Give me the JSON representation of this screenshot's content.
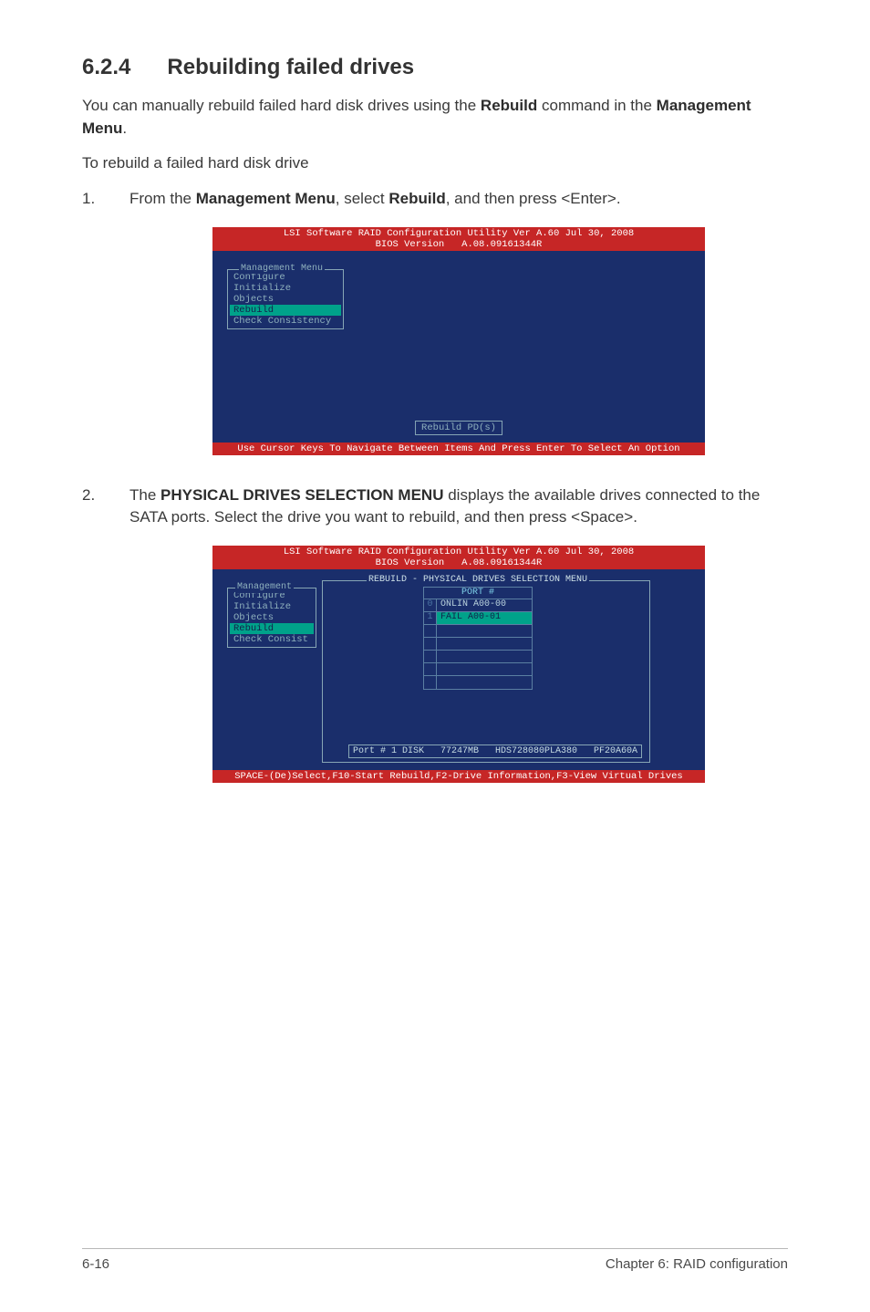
{
  "section": {
    "number": "6.2.4",
    "title": "Rebuilding failed drives"
  },
  "intro": {
    "l1a": "You can manually rebuild failed hard disk drives using the ",
    "l1b": "Rebuild",
    "l1c": " command in the ",
    "l1d": "Management Menu",
    "l1e": ".",
    "l2": "To rebuild a failed hard disk drive"
  },
  "step1": {
    "num": "1.",
    "a": "From the ",
    "b": "Management Menu",
    "c": ", select ",
    "d": "Rebuild",
    "e": ", and then press <Enter>."
  },
  "bios1": {
    "header_l1": "LSI Software RAID Configuration Utility Ver A.60 Jul 30, 2008",
    "header_l2": "BIOS Version   A.08.09161344R",
    "menu_title": "Management Menu",
    "items": [
      "Configure",
      "Initialize",
      "Objects",
      "Rebuild",
      "Check Consistency"
    ],
    "selected_index": 3,
    "hint": "Rebuild PD(s)",
    "footer": "Use Cursor Keys To Navigate Between Items And Press Enter To Select An Option"
  },
  "step2": {
    "num": "2.",
    "a": "The ",
    "b": "PHYSICAL DRIVES SELECTION MENU",
    "c": " displays the available drives connected to the SATA ports. Select the drive you want to rebuild, and then press <Space>."
  },
  "bios2": {
    "header_l1": "LSI Software RAID Configuration Utility Ver A.60 Jul 30, 2008",
    "header_l2": "BIOS Version   A.08.09161344R",
    "menu_title": "Management",
    "items": [
      "Configure",
      "Initialize",
      "Objects",
      "Rebuild",
      "Check Consist"
    ],
    "selected_index": 3,
    "panel_title": "REBUILD - PHYSICAL DRIVES SELECTION MENU",
    "port_header": "PORT #",
    "rows": [
      {
        "idx": "0",
        "label": "ONLIN A00-00",
        "selected": false
      },
      {
        "idx": "1",
        "label": "FAIL  A00-01",
        "selected": true
      },
      {
        "idx": "",
        "label": "",
        "selected": false
      },
      {
        "idx": "",
        "label": "",
        "selected": false
      },
      {
        "idx": "",
        "label": "",
        "selected": false
      },
      {
        "idx": "",
        "label": "",
        "selected": false
      },
      {
        "idx": "",
        "label": "",
        "selected": false
      }
    ],
    "info": "Port # 1 DISK   77247MB   HDS728080PLA380   PF20A60A",
    "footer": "SPACE-(De)Select,F10-Start Rebuild,F2-Drive Information,F3-View Virtual Drives"
  },
  "footer": {
    "left": "6-16",
    "right": "Chapter 6: RAID configuration"
  }
}
